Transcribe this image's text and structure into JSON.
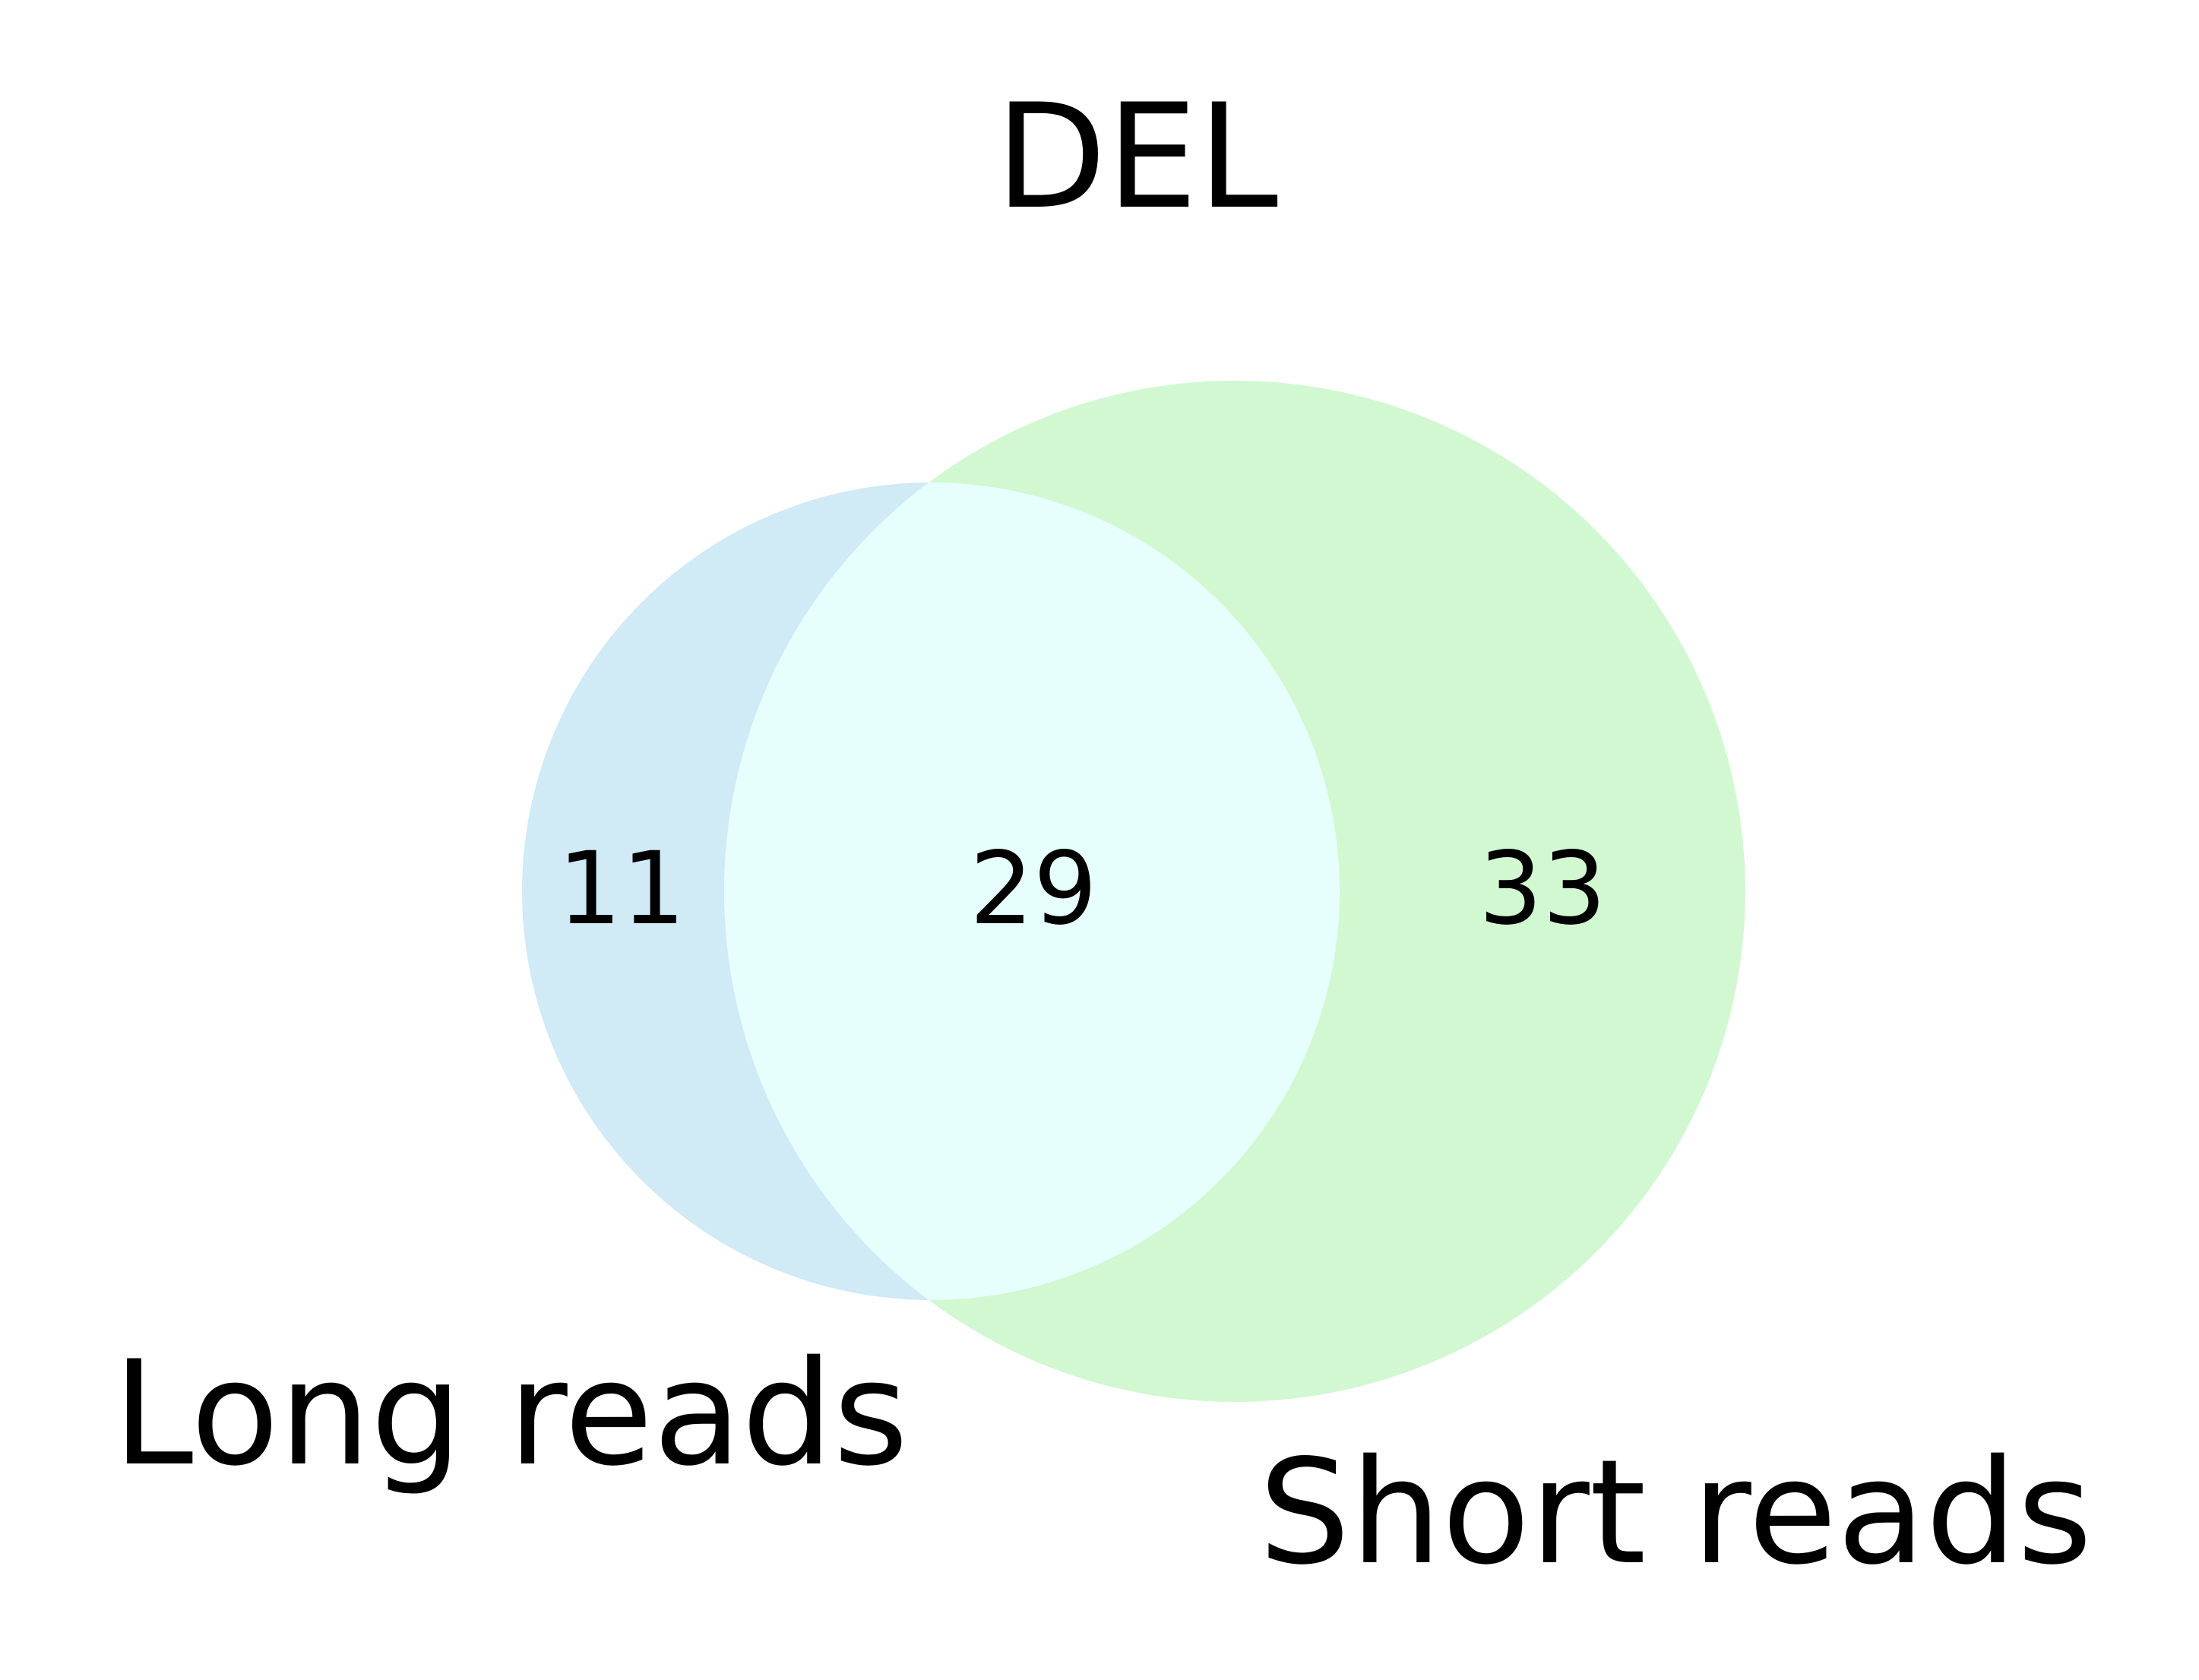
{
  "title": "DEL",
  "sets": [
    {
      "label": "Long reads",
      "color": "#87CEEB"
    },
    {
      "label": "Short reads",
      "color": "#90EE90"
    }
  ],
  "regions": {
    "long_only": "11",
    "both": "29",
    "short_only": "33"
  },
  "overlap_color": "#E6FFFD"
}
